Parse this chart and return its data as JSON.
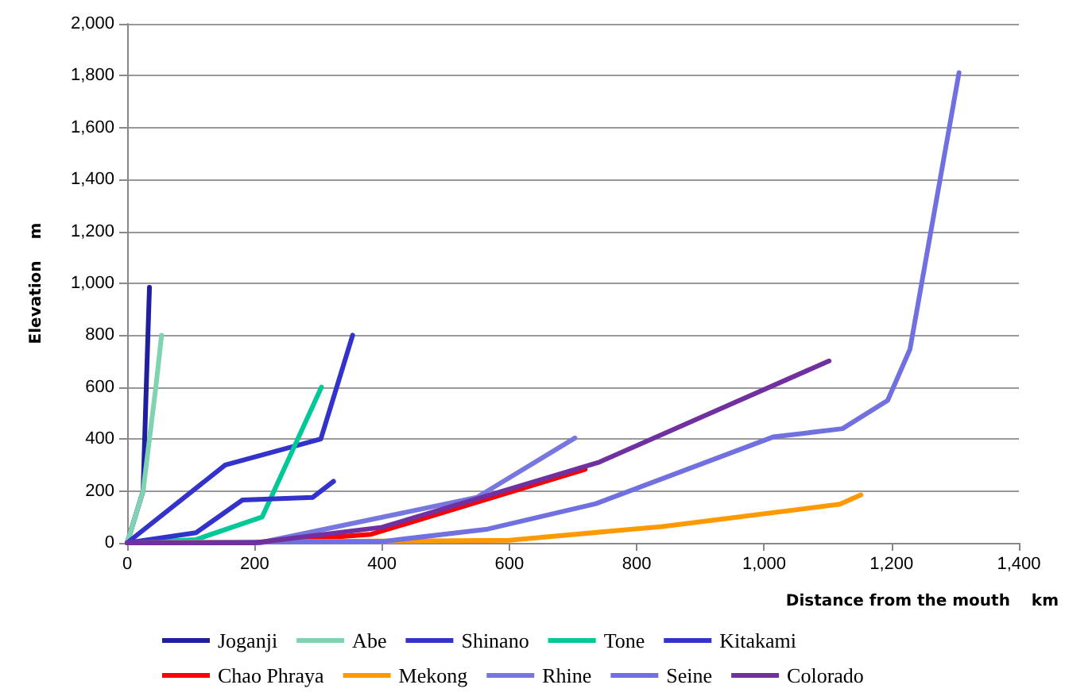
{
  "chart_data": {
    "type": "line",
    "xlabel": "Distance from the mouth　 km",
    "ylabel": "Elevation　 m",
    "xlim": [
      0,
      1400
    ],
    "xticks": [
      0,
      200,
      400,
      600,
      800,
      {
        "value": 1000,
        "label": "1,000"
      },
      {
        "value": 1200,
        "label": "1,200"
      },
      {
        "value": 1400,
        "label": "1,400"
      }
    ],
    "ylim": [
      0,
      2000
    ],
    "yticks": [
      0,
      200,
      400,
      600,
      800,
      {
        "value": 1000,
        "label": "1,000"
      },
      {
        "value": 1200,
        "label": "1,200"
      },
      {
        "value": 1400,
        "label": "1,400"
      },
      {
        "value": 1600,
        "label": "1,600"
      },
      {
        "value": 1800,
        "label": "1,800"
      },
      {
        "value": 2000,
        "label": "2,000"
      }
    ],
    "grid": "y",
    "legend": "bottom",
    "marker": "none",
    "line_style": "solid",
    "series": [
      {
        "name": "Joganji",
        "color": "#1f1fa0",
        "x": [
          0,
          25,
          30,
          35
        ],
        "values": [
          0,
          200,
          600,
          985
        ]
      },
      {
        "name": "Abe",
        "color": "#7fd3b0",
        "x": [
          0,
          25,
          45,
          54
        ],
        "values": [
          0,
          200,
          600,
          800
        ]
      },
      {
        "name": "Shinano",
        "color": "#3333cc",
        "x": [
          0,
          154,
          304,
          354
        ],
        "values": [
          0,
          300,
          400,
          800
        ]
      },
      {
        "name": "Tone",
        "color": "#00c896",
        "x": [
          0,
          107,
          212,
          305
        ],
        "values": [
          0,
          12,
          100,
          600
        ]
      },
      {
        "name": "Kitakami",
        "color": "#3333cc",
        "x": [
          0,
          108,
          181,
          291,
          324
        ],
        "values": [
          0,
          39,
          165,
          175,
          237
        ]
      },
      {
        "name": "Chao Phraya",
        "color": "#ff0000",
        "x": [
          0,
          200,
          383,
          719
        ],
        "values": [
          0,
          0,
          33,
          283
        ]
      },
      {
        "name": "Mekong",
        "color": "#ff9900",
        "x": [
          0,
          600,
          840,
          1119,
          1152
        ],
        "values": [
          0,
          10,
          63,
          149,
          185
        ]
      },
      {
        "name": "Rhine",
        "color": "#7777e0",
        "x": [
          0,
          207,
          549,
          703
        ],
        "values": [
          0,
          0,
          175,
          404
        ]
      },
      {
        "name": "Seine",
        "color": "#7070e0",
        "x": [
          0,
          400,
          566,
          736,
          1014,
          1123,
          1194,
          1229,
          1306
        ],
        "values": [
          0,
          5,
          53,
          151,
          408,
          440,
          549,
          746,
          1812
        ]
      },
      {
        "name": "Colorado",
        "color": "#7030a0",
        "x": [
          0,
          200,
          400,
          740,
          1102
        ],
        "values": [
          0,
          0,
          60,
          310,
          701
        ]
      }
    ]
  }
}
